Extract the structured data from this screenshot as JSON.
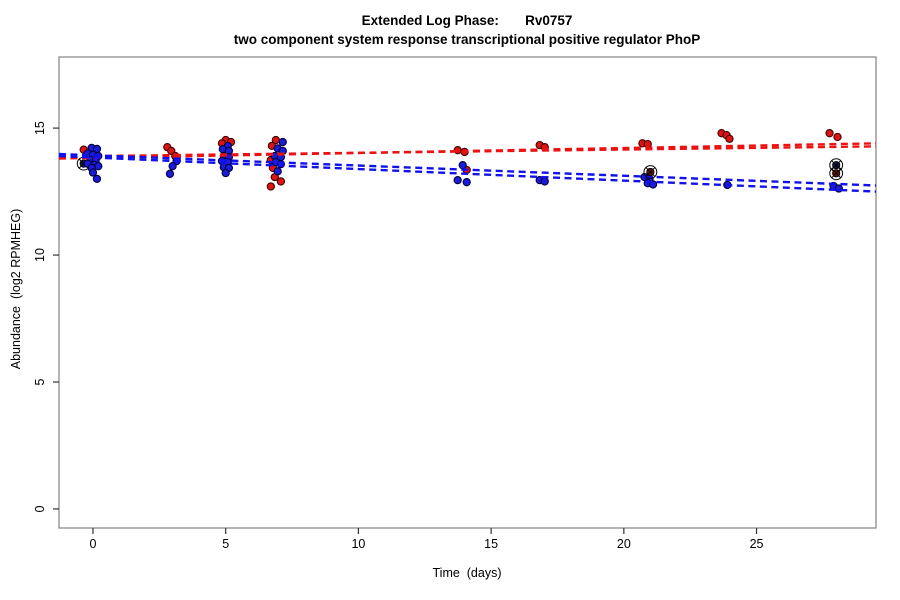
{
  "figure": {
    "title": "Extended Log Phase:       Rv0757",
    "subtitle": "two component system response transcriptional positive regulator PhoP",
    "xlabel": "Time  (days)",
    "ylabel": "Abundance  (log2 RPMHEG)"
  },
  "chart_data": {
    "type": "scatter",
    "title": "Extended Log Phase:       Rv0757",
    "subtitle": "two component system response transcriptional positive regulator PhoP",
    "xlabel": "Time  (days)",
    "ylabel": "Abundance  (log2 RPMHEG)",
    "xlim": [
      -1.28,
      29.5
    ],
    "ylim": [
      -0.75,
      17.8
    ],
    "xticks": [
      0,
      5,
      10,
      15,
      20,
      25
    ],
    "yticks": [
      0,
      5,
      10,
      15
    ],
    "grid": false,
    "legend": null,
    "colors": {
      "red": "#de1414",
      "red_edge": "#420000",
      "blue": "#1b1bd8",
      "blue_edge": "#000042",
      "red_line": "#ee1111",
      "blue_line": "#1111ee",
      "flag_red": "#771111",
      "flag_blue": "#1c1c55",
      "box": "#8c8c8c",
      "tick": "#333333",
      "text": "#000000"
    },
    "series": [
      {
        "name": "red",
        "marker": "circle",
        "color": "#de1414",
        "points": [
          [
            -0.35,
            14.15
          ],
          [
            2.8,
            14.25
          ],
          [
            2.95,
            14.1
          ],
          [
            3.1,
            13.9
          ],
          [
            5.0,
            14.53
          ],
          [
            5.2,
            14.45
          ],
          [
            4.86,
            14.4
          ],
          [
            6.89,
            14.53
          ],
          [
            6.74,
            14.3
          ],
          [
            6.7,
            13.74
          ],
          [
            6.78,
            13.43
          ],
          [
            6.85,
            13.07
          ],
          [
            7.08,
            12.9
          ],
          [
            6.7,
            12.7
          ],
          [
            13.74,
            14.13
          ],
          [
            14.0,
            14.06
          ],
          [
            14.08,
            13.35
          ],
          [
            16.83,
            14.33
          ],
          [
            17.02,
            14.25
          ],
          [
            20.7,
            14.4
          ],
          [
            20.9,
            14.37
          ],
          [
            23.68,
            14.8
          ],
          [
            23.87,
            14.72
          ],
          [
            23.98,
            14.58
          ],
          [
            27.75,
            14.8
          ],
          [
            28.05,
            14.65
          ]
        ]
      },
      {
        "name": "blue",
        "marker": "circle",
        "color": "#1b1bd8",
        "points": [
          [
            -0.05,
            14.22
          ],
          [
            0.15,
            14.18
          ],
          [
            -0.2,
            14.0
          ],
          [
            0.0,
            13.95
          ],
          [
            0.2,
            13.9
          ],
          [
            -0.1,
            13.75
          ],
          [
            0.1,
            13.7
          ],
          [
            -0.2,
            13.6
          ],
          [
            0.05,
            13.55
          ],
          [
            0.2,
            13.5
          ],
          [
            -0.05,
            13.43
          ],
          [
            0.0,
            13.25
          ],
          [
            0.15,
            13.0
          ],
          [
            3.15,
            13.7
          ],
          [
            3.0,
            13.5
          ],
          [
            2.9,
            13.2
          ],
          [
            5.08,
            14.3
          ],
          [
            4.89,
            14.17
          ],
          [
            5.12,
            14.1
          ],
          [
            4.93,
            13.9
          ],
          [
            5.12,
            13.86
          ],
          [
            4.86,
            13.7
          ],
          [
            5.08,
            13.66
          ],
          [
            4.93,
            13.46
          ],
          [
            5.12,
            13.43
          ],
          [
            5.0,
            13.23
          ],
          [
            7.15,
            14.45
          ],
          [
            6.96,
            14.2
          ],
          [
            7.15,
            14.1
          ],
          [
            6.85,
            13.9
          ],
          [
            7.08,
            13.86
          ],
          [
            6.89,
            13.66
          ],
          [
            7.08,
            13.58
          ],
          [
            6.96,
            13.3
          ],
          [
            13.93,
            13.54
          ],
          [
            13.74,
            12.95
          ],
          [
            14.08,
            12.87
          ],
          [
            16.83,
            12.95
          ],
          [
            17.02,
            12.9
          ],
          [
            20.78,
            13.07
          ],
          [
            20.97,
            13.0
          ],
          [
            20.9,
            12.83
          ],
          [
            21.1,
            12.78
          ],
          [
            23.9,
            12.76
          ],
          [
            27.9,
            12.72
          ],
          [
            28.1,
            12.62
          ]
        ]
      }
    ],
    "trend_lines": [
      {
        "series": "red",
        "style": "dashed",
        "from": [
          -1.28,
          13.8
        ],
        "to": [
          29.5,
          14.4
        ]
      },
      {
        "series": "red",
        "style": "dashed",
        "from": [
          -1.28,
          13.88
        ],
        "to": [
          29.5,
          14.28
        ]
      },
      {
        "series": "blue",
        "style": "dashed",
        "from": [
          -1.28,
          13.98
        ],
        "to": [
          29.5,
          12.74
        ]
      },
      {
        "series": "blue",
        "style": "dashed",
        "from": [
          -1.28,
          13.9
        ],
        "to": [
          29.5,
          12.5
        ]
      }
    ],
    "flagged_points": [
      {
        "x": -0.35,
        "y": 13.6,
        "series": "blue",
        "layer": "back"
      },
      {
        "x": 21.0,
        "y": 13.27,
        "series": "red",
        "layer": "front"
      },
      {
        "x": 28.0,
        "y": 13.54,
        "series": "blue",
        "layer": "front"
      },
      {
        "x": 28.0,
        "y": 13.22,
        "series": "red",
        "layer": "front"
      }
    ]
  }
}
